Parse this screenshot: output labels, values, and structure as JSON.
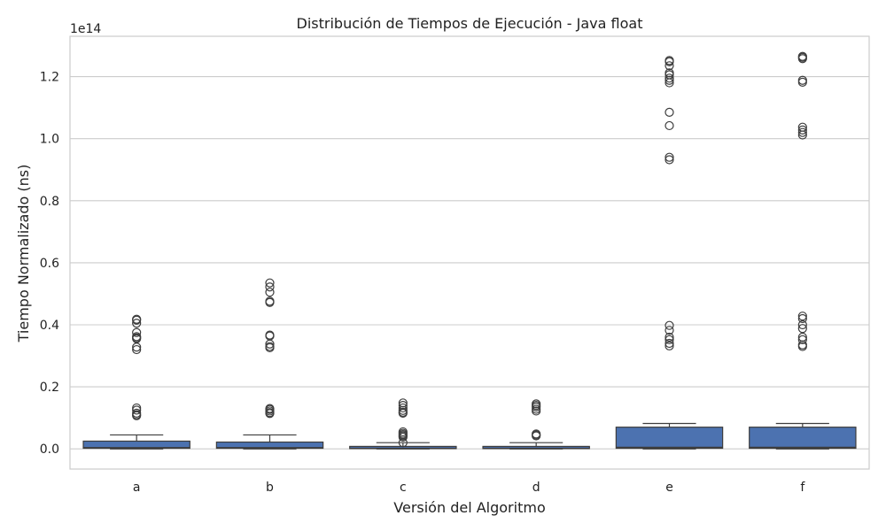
{
  "chart_data": {
    "type": "boxplot",
    "title": "Distribución de Tiempos de Ejecución - Java float",
    "xlabel": "Versión del Algoritmo",
    "ylabel": "Tiempo Normalizado (ns)",
    "y_multiplier_label": "1e14",
    "ylim": [
      -0.065,
      1.33
    ],
    "yticks": [
      0.0,
      0.2,
      0.4,
      0.6,
      0.8,
      1.0,
      1.2
    ],
    "ytick_labels": [
      "0.0",
      "0.2",
      "0.4",
      "0.6",
      "0.8",
      "1.0",
      "1.2"
    ],
    "grid": true,
    "box_color": "#4c72b0",
    "categories": [
      "a",
      "b",
      "c",
      "d",
      "e",
      "f"
    ],
    "boxes": [
      {
        "category": "a",
        "whisker_low": 0.0,
        "q1": 0.002,
        "median": 0.004,
        "q3": 0.025,
        "whisker_high": 0.045,
        "outliers": [
          0.418,
          0.415,
          0.405,
          0.375,
          0.362,
          0.358,
          0.355,
          0.328,
          0.32,
          0.132,
          0.125,
          0.115,
          0.11,
          0.107
        ]
      },
      {
        "category": "b",
        "whisker_low": 0.0,
        "q1": 0.002,
        "median": 0.004,
        "q3": 0.022,
        "whisker_high": 0.045,
        "outliers": [
          0.535,
          0.522,
          0.505,
          0.476,
          0.472,
          0.367,
          0.364,
          0.338,
          0.33,
          0.326,
          0.13,
          0.127,
          0.122,
          0.117,
          0.114
        ]
      },
      {
        "category": "c",
        "whisker_low": 0.0,
        "q1": 0.001,
        "median": 0.002,
        "q3": 0.008,
        "whisker_high": 0.02,
        "outliers": [
          0.148,
          0.14,
          0.132,
          0.124,
          0.118,
          0.115,
          0.055,
          0.05,
          0.046,
          0.042,
          0.038,
          0.02
        ]
      },
      {
        "category": "d",
        "whisker_low": 0.0,
        "q1": 0.001,
        "median": 0.002,
        "q3": 0.008,
        "whisker_high": 0.02,
        "outliers": [
          0.145,
          0.14,
          0.135,
          0.128,
          0.122,
          0.048,
          0.045,
          0.042
        ]
      },
      {
        "category": "e",
        "whisker_low": 0.0,
        "q1": 0.002,
        "median": 0.005,
        "q3": 0.07,
        "whisker_high": 0.082,
        "outliers": [
          1.252,
          1.248,
          1.235,
          1.212,
          1.206,
          1.195,
          1.188,
          1.18,
          1.085,
          1.042,
          0.94,
          0.932,
          0.398,
          0.382,
          0.36,
          0.352,
          0.34,
          0.332
        ]
      },
      {
        "category": "f",
        "whisker_low": 0.0,
        "q1": 0.002,
        "median": 0.005,
        "q3": 0.07,
        "whisker_high": 0.082,
        "outliers": [
          1.265,
          1.262,
          1.258,
          1.188,
          1.182,
          1.037,
          1.028,
          1.02,
          1.012,
          0.428,
          0.42,
          0.4,
          0.388,
          0.36,
          0.352,
          0.335,
          0.33
        ]
      }
    ]
  }
}
